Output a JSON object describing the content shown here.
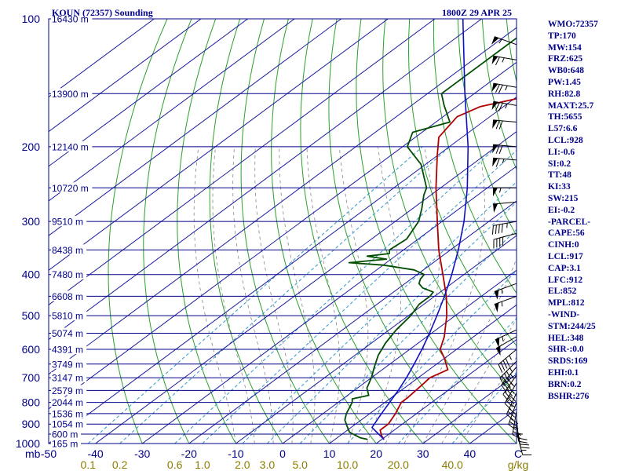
{
  "header": {
    "station": "KOUN (72357) Sounding",
    "datetime": "1800Z 29 APR 25"
  },
  "indices": [
    "WMO:72357",
    "TP:170",
    "MW:154",
    "FRZ:625",
    "WB0:648",
    "PW:1.45",
    "RH:82.8",
    "MAXT:25.7",
    "TH:5655",
    "L57:6.6",
    "LCL:928",
    "LI:-0.6",
    "SI:0.2",
    "TT:48",
    "KI:33",
    "SW:215",
    "EI:-0.2",
    "-PARCEL-",
    "CAPE:56",
    "CINH:0",
    "LCL:917",
    "CAP:3.1",
    "LFC:912",
    "EL:852",
    "MPL:812",
    "-WIND-",
    "STM:244/25",
    "HEL:348",
    "SHR-:0.0",
    "SRDS:169",
    "EHI:0.1",
    "BRN:0.2",
    "BSHR:276"
  ],
  "colors": {
    "border": "#00008b",
    "isobar": "#00008b",
    "isotherm": "#1a1aa0",
    "dry_adiabat": "#2aa02a",
    "moist_adiabat": "#888888",
    "mixing_ratio": "#3399cc",
    "temperature": "#b00000",
    "dewpoint": "#004d00",
    "parcel": "#1010c0",
    "wind_barb": "#000000",
    "axis_text": "#00008b",
    "mixing_text": "#8b7d00"
  },
  "chart_data": {
    "type": "line",
    "title": "KOUN (72357) Sounding",
    "subtitle": "1800Z 29 APR 25",
    "x_axis": {
      "label": "C",
      "range": [
        -50,
        50
      ],
      "tick_labels": [
        "-50",
        "-40",
        "-30",
        "-20",
        "-10",
        "0",
        "10",
        "20",
        "30",
        "40"
      ],
      "corner_label": "mb"
    },
    "y_axis": {
      "scale": "log",
      "range": [
        1000,
        100
      ],
      "pressure_labels": [
        "100",
        "200",
        "300",
        "400",
        "500",
        "600",
        "700",
        "800",
        "900",
        "1000"
      ]
    },
    "pressure_levels": [
      {
        "p": 100,
        "height": "16430 m"
      },
      {
        "p": 150,
        "height": "13900 m"
      },
      {
        "p": 200,
        "height": "12140 m"
      },
      {
        "p": 250,
        "height": "10720 m"
      },
      {
        "p": 300,
        "height": "9510 m"
      },
      {
        "p": 350,
        "height": "8438 m"
      },
      {
        "p": 400,
        "height": "7480 m"
      },
      {
        "p": 450,
        "height": "6608 m"
      },
      {
        "p": 500,
        "height": "5810 m"
      },
      {
        "p": 550,
        "height": "5074 m"
      },
      {
        "p": 600,
        "height": "4391 m"
      },
      {
        "p": 650,
        "height": "3749 m"
      },
      {
        "p": 700,
        "height": "3147 m"
      },
      {
        "p": 750,
        "height": "2579 m"
      },
      {
        "p": 800,
        "height": "2044 m"
      },
      {
        "p": 850,
        "height": "1536 m"
      },
      {
        "p": 900,
        "height": "1054 m"
      },
      {
        "p": 950,
        "height": "600 m"
      },
      {
        "p": 1000,
        "height": "165 m"
      }
    ],
    "mixing_ratio_labels": [
      {
        "w": 0.1,
        "label": "0.1"
      },
      {
        "w": 0.2,
        "label": "0.2"
      },
      {
        "w": 0.6,
        "label": "0.6"
      },
      {
        "w": 1.0,
        "label": "1.0"
      },
      {
        "w": 2.0,
        "label": "2.0"
      },
      {
        "w": 3.0,
        "label": "3.0"
      },
      {
        "w": 5.0,
        "label": "5.0"
      },
      {
        "w": 10.0,
        "label": "10.0"
      },
      {
        "w": 20.0,
        "label": "20.0"
      },
      {
        "w": 40.0,
        "label": "40.0"
      }
    ],
    "mixing_unit": "g/kg",
    "series": [
      {
        "key": "temperature",
        "points": [
          [
            978,
            20.5
          ],
          [
            960,
            19
          ],
          [
            930,
            17
          ],
          [
            900,
            17
          ],
          [
            850,
            15.5
          ],
          [
            800,
            13.5
          ],
          [
            780,
            13.5
          ],
          [
            720,
            12.8
          ],
          [
            700,
            12.5
          ],
          [
            670,
            14
          ],
          [
            660,
            13
          ],
          [
            630,
            10
          ],
          [
            600,
            6.5
          ],
          [
            560,
            3.7
          ],
          [
            500,
            -1.8
          ],
          [
            450,
            -7.5
          ],
          [
            400,
            -14.5
          ],
          [
            350,
            -22.5
          ],
          [
            300,
            -31
          ],
          [
            250,
            -41
          ],
          [
            210,
            -50
          ],
          [
            190,
            -55
          ],
          [
            170,
            -57
          ],
          [
            161,
            -55
          ],
          [
            150,
            -46
          ],
          [
            125,
            -37
          ],
          [
            100,
            -28
          ]
        ]
      },
      {
        "key": "dewpoint",
        "points": [
          [
            978,
            17
          ],
          [
            970,
            15
          ],
          [
            955,
            13
          ],
          [
            940,
            11
          ],
          [
            920,
            9.5
          ],
          [
            900,
            8
          ],
          [
            880,
            6.5
          ],
          [
            860,
            5.5
          ],
          [
            850,
            5
          ],
          [
            800,
            3
          ],
          [
            785,
            2
          ],
          [
            770,
            4.5
          ],
          [
            740,
            2
          ],
          [
            700,
            0
          ],
          [
            660,
            -2.5
          ],
          [
            620,
            -5
          ],
          [
            580,
            -7
          ],
          [
            540,
            -8.5
          ],
          [
            500,
            -9.5
          ],
          [
            470,
            -11
          ],
          [
            450,
            -11
          ],
          [
            440,
            -11.5
          ],
          [
            430,
            -15
          ],
          [
            420,
            -17
          ],
          [
            410,
            -18
          ],
          [
            400,
            -18.5
          ],
          [
            390,
            -22
          ],
          [
            380,
            -30
          ],
          [
            375,
            -38
          ],
          [
            368,
            -31
          ],
          [
            362,
            -36
          ],
          [
            357,
            -32
          ],
          [
            350,
            -33
          ],
          [
            330,
            -32.5
          ],
          [
            300,
            -35
          ],
          [
            280,
            -38
          ],
          [
            260,
            -41.5
          ],
          [
            250,
            -43
          ],
          [
            220,
            -51
          ],
          [
            200,
            -59
          ],
          [
            185,
            -62
          ],
          [
            175,
            -57
          ],
          [
            160,
            -63
          ],
          [
            150,
            -67
          ],
          [
            120,
            -67
          ],
          [
            100,
            -67
          ]
        ]
      },
      {
        "key": "parcel",
        "points": [
          [
            978,
            20.5
          ],
          [
            940,
            16.8
          ],
          [
            917,
            14.5
          ],
          [
            900,
            14
          ],
          [
            850,
            12.5
          ],
          [
            800,
            11
          ],
          [
            750,
            9.4
          ],
          [
            700,
            7.5
          ],
          [
            650,
            5.2
          ],
          [
            600,
            2.6
          ],
          [
            550,
            -0.4
          ],
          [
            500,
            -3.9
          ],
          [
            450,
            -7.9
          ],
          [
            400,
            -12.6
          ],
          [
            350,
            -18.3
          ],
          [
            300,
            -25.3
          ],
          [
            250,
            -34.3
          ],
          [
            200,
            -46
          ],
          [
            150,
            -62
          ],
          [
            100,
            -84
          ]
        ]
      }
    ],
    "wind_barbs": [
      {
        "p": 115,
        "dir": 290,
        "speed": 55
      },
      {
        "p": 125,
        "dir": 280,
        "speed": 65
      },
      {
        "p": 145,
        "dir": 280,
        "speed": 75
      },
      {
        "p": 160,
        "dir": 280,
        "speed": 75
      },
      {
        "p": 175,
        "dir": 275,
        "speed": 70
      },
      {
        "p": 200,
        "dir": 275,
        "speed": 70
      },
      {
        "p": 215,
        "dir": 275,
        "speed": 65
      },
      {
        "p": 250,
        "dir": 270,
        "speed": 55
      },
      {
        "p": 270,
        "dir": 265,
        "speed": 50
      },
      {
        "p": 300,
        "dir": 260,
        "speed": 45
      },
      {
        "p": 320,
        "dir": 255,
        "speed": 40
      },
      {
        "p": 420,
        "dir": 250,
        "speed": 55
      },
      {
        "p": 450,
        "dir": 250,
        "speed": 55
      },
      {
        "p": 540,
        "dir": 245,
        "speed": 55
      },
      {
        "p": 560,
        "dir": 240,
        "speed": 50
      },
      {
        "p": 600,
        "dir": 230,
        "speed": 45
      },
      {
        "p": 640,
        "dir": 225,
        "speed": 45
      },
      {
        "p": 660,
        "dir": 220,
        "speed": 45
      },
      {
        "p": 690,
        "dir": 215,
        "speed": 45
      },
      {
        "p": 720,
        "dir": 210,
        "speed": 40
      },
      {
        "p": 760,
        "dir": 205,
        "speed": 35
      },
      {
        "p": 800,
        "dir": 200,
        "speed": 30
      },
      {
        "p": 840,
        "dir": 190,
        "speed": 25
      },
      {
        "p": 870,
        "dir": 175,
        "speed": 25
      },
      {
        "p": 900,
        "dir": 170,
        "speed": 20
      },
      {
        "p": 940,
        "dir": 165,
        "speed": 15
      }
    ]
  }
}
